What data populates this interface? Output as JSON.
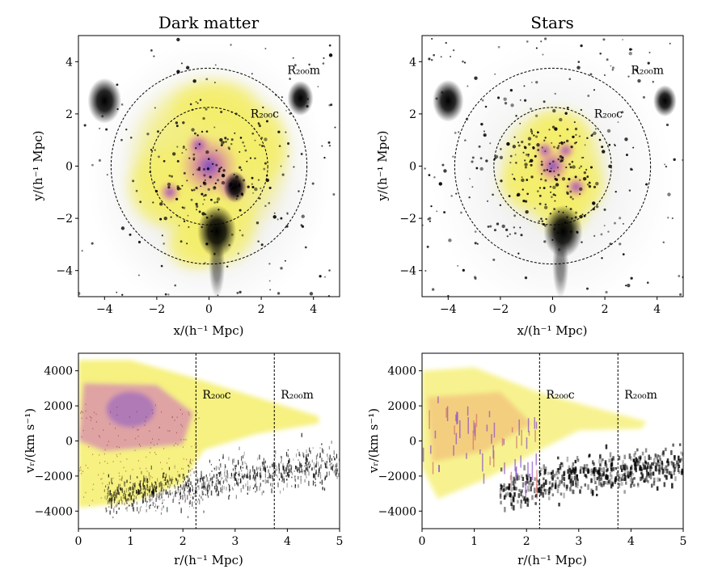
{
  "figure": {
    "titles": {
      "left": "Dark matter",
      "right": "Stars"
    }
  },
  "labels": {
    "x_top": "x/(h⁻¹ Mpc)",
    "y_top": "y/(h⁻¹ Mpc)",
    "x_bottom": "r/(h⁻¹ Mpc)",
    "y_bottom": "vᵣ/(km s⁻¹)",
    "r200c": "R₂₀₀c",
    "r200m": "R₂₀₀m"
  },
  "colors": {
    "halo_yellow": "#f2f07a",
    "halo_pink": "#d87aa8",
    "halo_purple": "#7a4fc2",
    "halo_blue": "#3d3fd0",
    "dense_black": "#000000",
    "diffuse_gray": "#9a9a9a"
  },
  "chart_data": [
    {
      "id": "dm-map",
      "type": "heatmap",
      "title": "Dark matter",
      "xlabel": "x/(h⁻¹ Mpc)",
      "ylabel": "y/(h⁻¹ Mpc)",
      "xlim": [
        -5,
        5
      ],
      "ylim": [
        -5,
        5
      ],
      "xticks": [
        -4,
        -2,
        0,
        2,
        4
      ],
      "yticks": [
        -4,
        -2,
        0,
        2,
        4
      ],
      "circles": [
        {
          "name": "R200c",
          "center": [
            0,
            0
          ],
          "radius": 2.25
        },
        {
          "name": "R200m",
          "center": [
            0,
            0
          ],
          "radius": 3.75
        }
      ],
      "subhalos": [
        {
          "x": 0.3,
          "y": -2.5,
          "strength": 1.0
        },
        {
          "x": -4.0,
          "y": 2.5,
          "strength": 0.8
        },
        {
          "x": 3.5,
          "y": 2.6,
          "strength": 0.5
        },
        {
          "x": 1.0,
          "y": -0.8,
          "strength": 0.4
        }
      ]
    },
    {
      "id": "stars-map",
      "type": "heatmap",
      "title": "Stars",
      "xlabel": "x/(h⁻¹ Mpc)",
      "ylabel": "y/(h⁻¹ Mpc)",
      "xlim": [
        -5,
        5
      ],
      "ylim": [
        -5,
        5
      ],
      "xticks": [
        -4,
        -2,
        0,
        2,
        4
      ],
      "yticks": [
        -4,
        -2,
        0,
        2,
        4
      ],
      "circles": [
        {
          "name": "R200c",
          "center": [
            0,
            0
          ],
          "radius": 2.25
        },
        {
          "name": "R200m",
          "center": [
            0,
            0
          ],
          "radius": 3.75
        }
      ],
      "subhalos": [
        {
          "x": 0.4,
          "y": -2.5,
          "strength": 1.0
        },
        {
          "x": -4.0,
          "y": 2.5,
          "strength": 0.7
        },
        {
          "x": 4.3,
          "y": 2.5,
          "strength": 0.4
        }
      ]
    },
    {
      "id": "dm-phase",
      "type": "heatmap",
      "xlabel": "r/(h⁻¹ Mpc)",
      "ylabel": "vᵣ/(km s⁻¹)",
      "xlim": [
        0,
        5
      ],
      "ylim": [
        -5000,
        5000
      ],
      "xticks": [
        0,
        1,
        2,
        3,
        4,
        5
      ],
      "yticks": [
        -4000,
        -2000,
        0,
        2000,
        4000
      ],
      "vlines": [
        {
          "name": "R200c",
          "x": 2.25
        },
        {
          "name": "R200m",
          "x": 3.75
        }
      ]
    },
    {
      "id": "stars-phase",
      "type": "heatmap",
      "xlabel": "r/(h⁻¹ Mpc)",
      "ylabel": "vᵣ/(km s⁻¹)",
      "xlim": [
        0,
        5
      ],
      "ylim": [
        -5000,
        5000
      ],
      "xticks": [
        0,
        1,
        2,
        3,
        4,
        5
      ],
      "yticks": [
        -4000,
        -2000,
        0,
        2000,
        4000
      ],
      "vlines": [
        {
          "name": "R200c",
          "x": 2.25
        },
        {
          "name": "R200m",
          "x": 3.75
        }
      ]
    }
  ]
}
